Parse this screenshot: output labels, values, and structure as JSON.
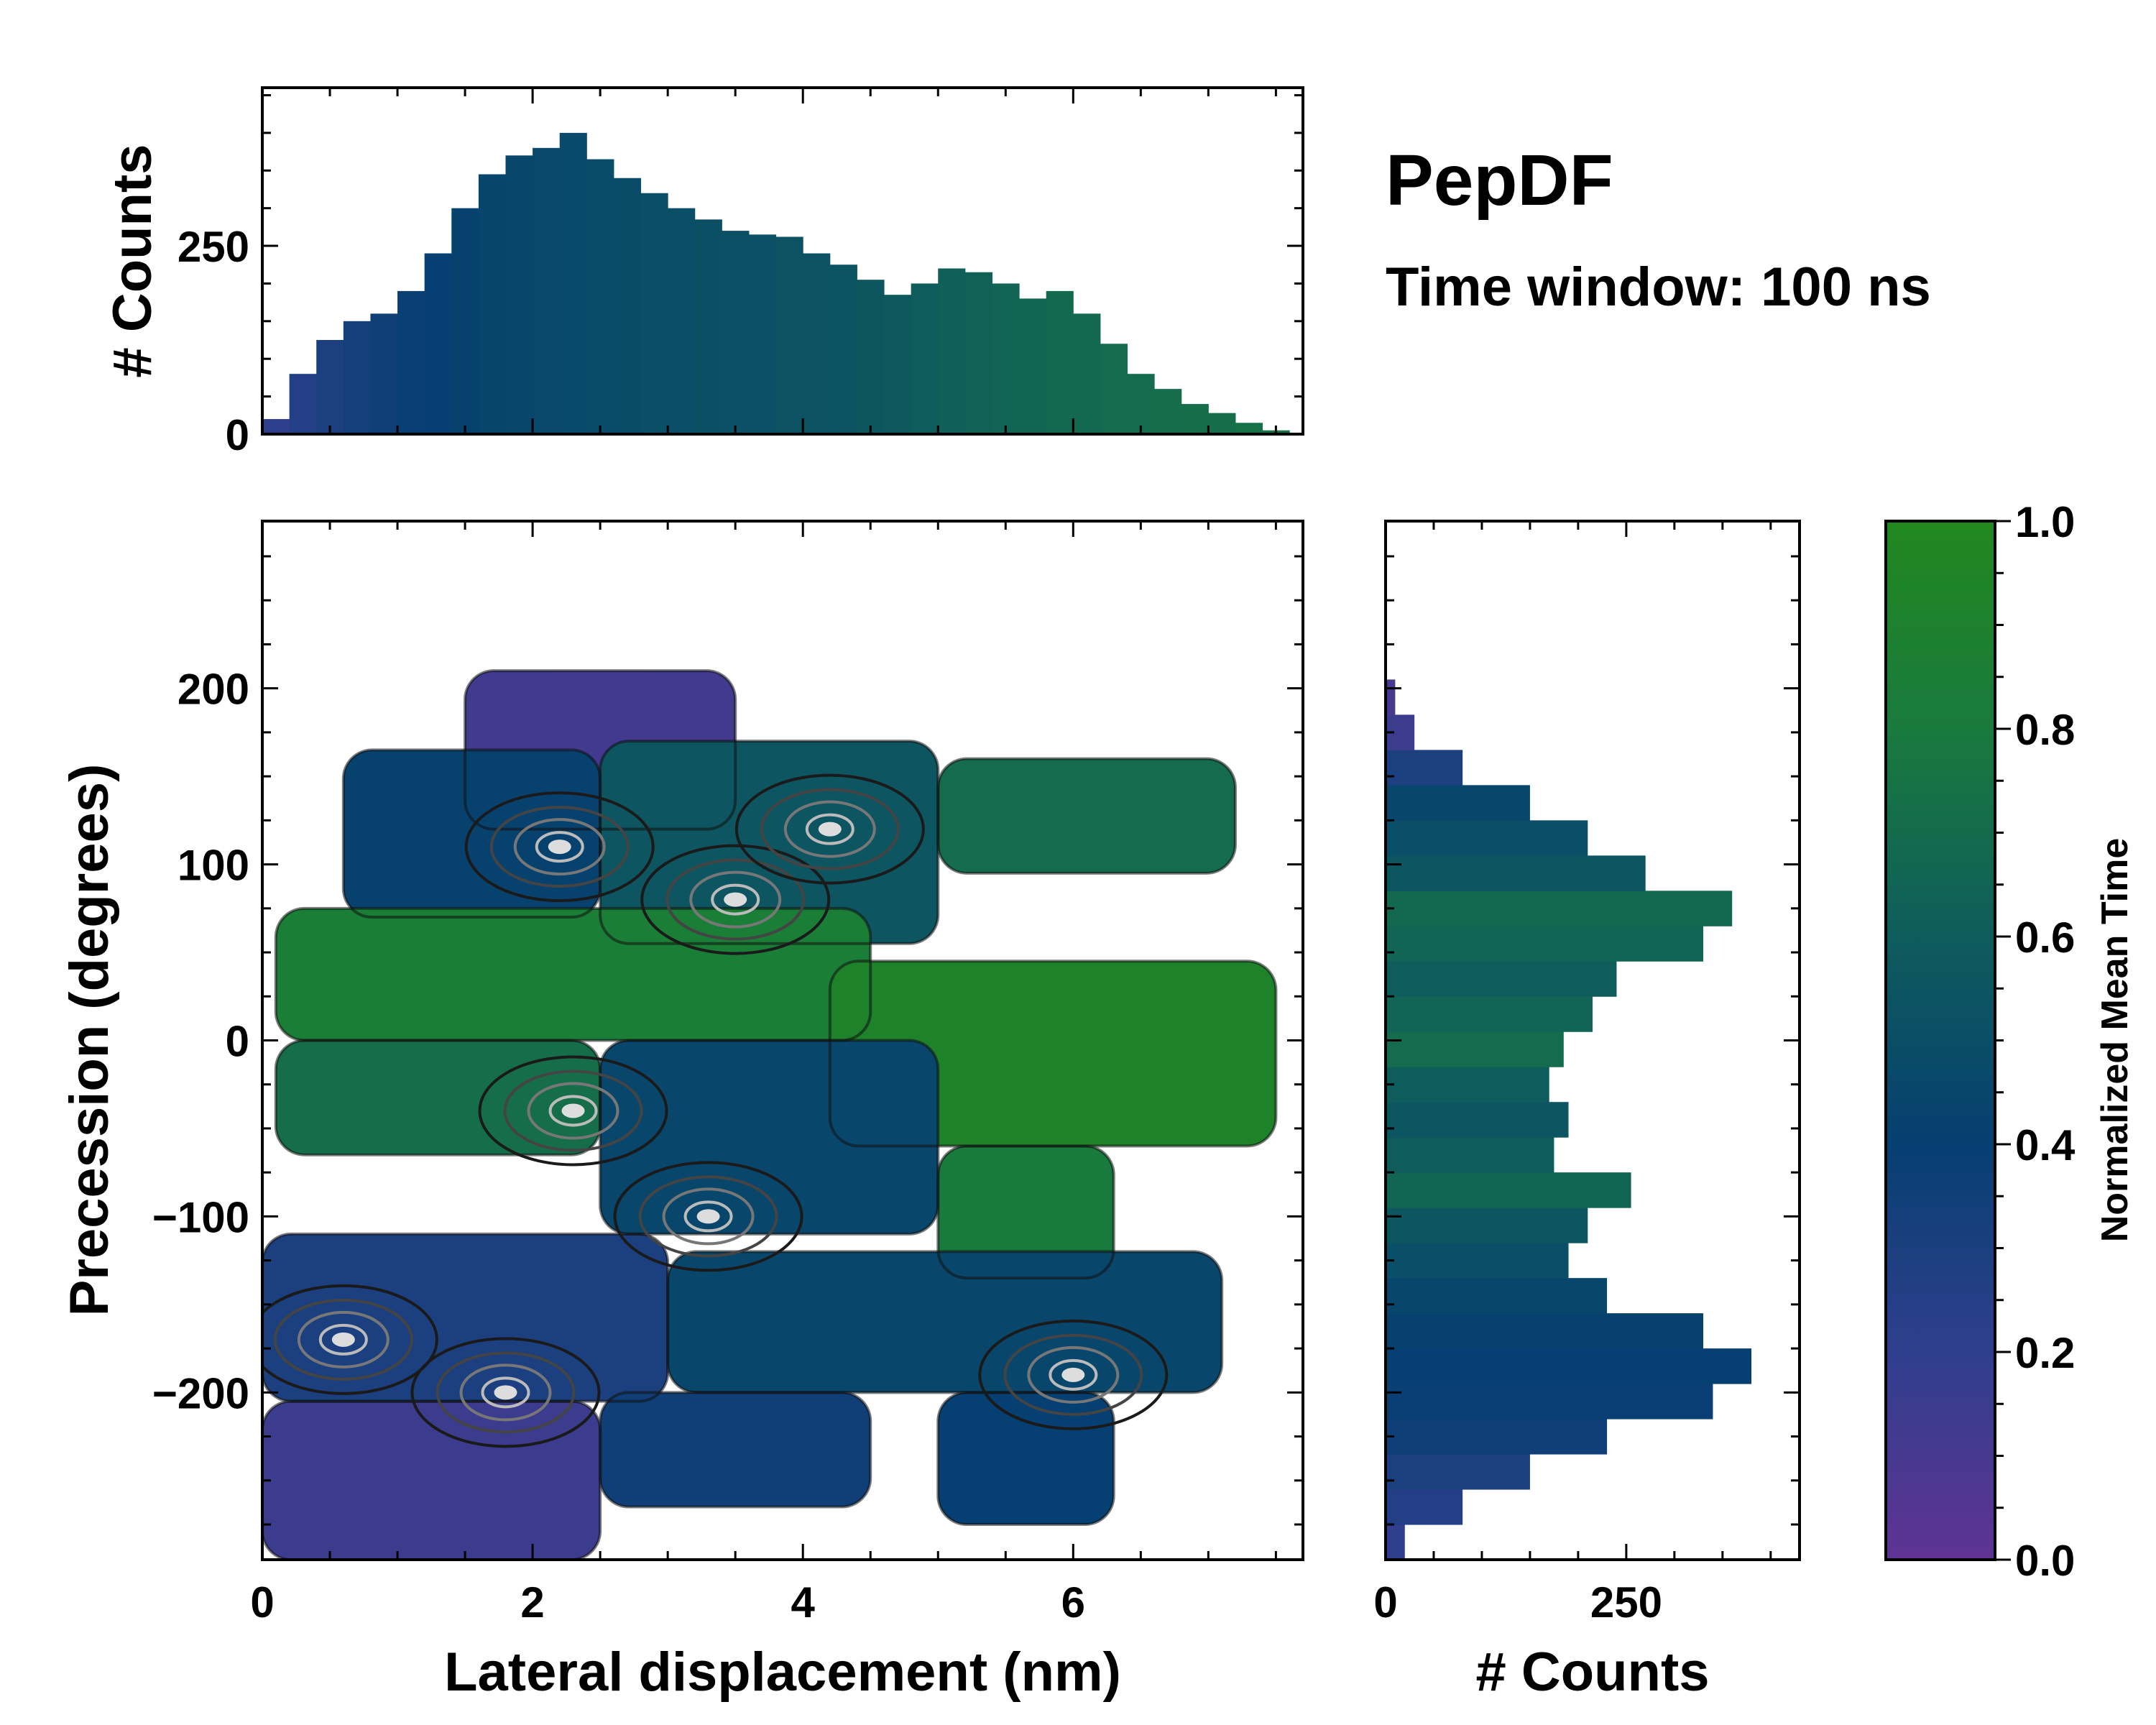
{
  "chart_data": [
    {
      "panel": "marginal-x",
      "type": "bar",
      "xlabel": "",
      "ylabel": "# Counts",
      "xlim": [
        0,
        7.7
      ],
      "ylim": [
        0,
        460
      ],
      "yticks": [
        0,
        250
      ],
      "x_centers": [
        0.1,
        0.3,
        0.5,
        0.7,
        0.9,
        1.1,
        1.3,
        1.5,
        1.7,
        1.9,
        2.1,
        2.3,
        2.5,
        2.7,
        2.9,
        3.1,
        3.3,
        3.5,
        3.7,
        3.9,
        4.1,
        4.3,
        4.5,
        4.7,
        4.9,
        5.1,
        5.3,
        5.5,
        5.7,
        5.9,
        6.1,
        6.3,
        6.5,
        6.7,
        6.9,
        7.1,
        7.3,
        7.5
      ],
      "values": [
        20,
        80,
        125,
        150,
        160,
        190,
        240,
        300,
        345,
        370,
        380,
        400,
        365,
        340,
        320,
        300,
        285,
        270,
        265,
        262,
        240,
        225,
        205,
        185,
        200,
        220,
        215,
        200,
        180,
        190,
        160,
        120,
        80,
        60,
        40,
        28,
        15,
        5
      ],
      "normalized_time": [
        0.2,
        0.26,
        0.3,
        0.33,
        0.35,
        0.38,
        0.4,
        0.42,
        0.44,
        0.45,
        0.46,
        0.47,
        0.48,
        0.49,
        0.5,
        0.5,
        0.51,
        0.52,
        0.52,
        0.53,
        0.53,
        0.54,
        0.56,
        0.58,
        0.6,
        0.62,
        0.63,
        0.65,
        0.66,
        0.68,
        0.68,
        0.7,
        0.7,
        0.71,
        0.72,
        0.72,
        0.73,
        0.74
      ]
    },
    {
      "panel": "main",
      "type": "heatmap",
      "xlabel": "Lateral displacement (nm)",
      "ylabel": "Precession (degrees)",
      "xlim": [
        0,
        7.7
      ],
      "ylim": [
        -295,
        295
      ],
      "xticks": [
        0,
        2,
        4,
        6
      ],
      "yticks": [
        -200,
        -100,
        0,
        100,
        200
      ],
      "color_value": "Normalized Mean Time",
      "overlay": "density contours",
      "regions": [
        {
          "x": [
            1.5,
            3.5
          ],
          "y": [
            120,
            210
          ],
          "normalized_time": 0.12
        },
        {
          "x": [
            0.6,
            2.5
          ],
          "y": [
            70,
            165
          ],
          "normalized_time": 0.42
        },
        {
          "x": [
            2.5,
            5.0
          ],
          "y": [
            55,
            170
          ],
          "normalized_time": 0.55
        },
        {
          "x": [
            5.0,
            7.2
          ],
          "y": [
            95,
            160
          ],
          "normalized_time": 0.7
        },
        {
          "x": [
            0.1,
            4.5
          ],
          "y": [
            0,
            75
          ],
          "normalized_time": 0.85
        },
        {
          "x": [
            4.2,
            7.5
          ],
          "y": [
            -60,
            45
          ],
          "normalized_time": 0.92
        },
        {
          "x": [
            0.1,
            2.5
          ],
          "y": [
            -65,
            0
          ],
          "normalized_time": 0.72
        },
        {
          "x": [
            2.5,
            5.0
          ],
          "y": [
            -110,
            0
          ],
          "normalized_time": 0.45
        },
        {
          "x": [
            5.0,
            6.3
          ],
          "y": [
            -135,
            -60
          ],
          "normalized_time": 0.8
        },
        {
          "x": [
            0.0,
            3.0
          ],
          "y": [
            -205,
            -110
          ],
          "normalized_time": 0.3
        },
        {
          "x": [
            3.0,
            7.1
          ],
          "y": [
            -200,
            -120
          ],
          "normalized_time": 0.45
        },
        {
          "x": [
            0.0,
            2.5
          ],
          "y": [
            -295,
            -205
          ],
          "normalized_time": 0.15
        },
        {
          "x": [
            2.5,
            4.5
          ],
          "y": [
            -265,
            -200
          ],
          "normalized_time": 0.35
        },
        {
          "x": [
            5.0,
            6.3
          ],
          "y": [
            -275,
            -200
          ],
          "normalized_time": 0.4
        }
      ],
      "density_peaks": [
        {
          "x": 2.2,
          "y": 110
        },
        {
          "x": 3.5,
          "y": 80
        },
        {
          "x": 4.2,
          "y": 120
        },
        {
          "x": 2.3,
          "y": -40
        },
        {
          "x": 0.6,
          "y": -170
        },
        {
          "x": 1.8,
          "y": -200
        },
        {
          "x": 3.3,
          "y": -100
        },
        {
          "x": 6.0,
          "y": -190
        }
      ]
    },
    {
      "panel": "marginal-y",
      "type": "bar",
      "orientation": "horizontal",
      "xlabel": "# Counts",
      "ylabel": "",
      "xlim": [
        0,
        430
      ],
      "xticks": [
        0,
        250
      ],
      "ylim": [
        -295,
        295
      ],
      "y_centers": [
        -285,
        -265,
        -245,
        -225,
        -205,
        -185,
        -165,
        -145,
        -125,
        -105,
        -85,
        -65,
        -45,
        -25,
        -5,
        15,
        35,
        55,
        75,
        95,
        115,
        135,
        155,
        175,
        195,
        215
      ],
      "values": [
        20,
        80,
        150,
        230,
        340,
        380,
        330,
        230,
        190,
        210,
        255,
        175,
        190,
        170,
        185,
        215,
        240,
        330,
        360,
        270,
        210,
        150,
        80,
        30,
        10,
        0
      ],
      "normalized_time": [
        0.2,
        0.26,
        0.3,
        0.35,
        0.38,
        0.4,
        0.42,
        0.45,
        0.5,
        0.55,
        0.66,
        0.6,
        0.55,
        0.6,
        0.7,
        0.65,
        0.6,
        0.65,
        0.68,
        0.55,
        0.5,
        0.45,
        0.3,
        0.15,
        0.1,
        0.08
      ]
    }
  ],
  "figure": {
    "title": "PepDF",
    "subtitle": "Time window: 100 ns"
  },
  "colorbar": {
    "label": "Normalized Mean Time",
    "range": [
      0,
      1
    ],
    "tick_labels": [
      "0.0",
      "0.2",
      "0.4",
      "0.6",
      "0.8",
      "1.0"
    ],
    "colors": [
      "#5f3392",
      "#2f3f8d",
      "#063f71",
      "#0f5c5c",
      "#197a3d",
      "#21881f"
    ]
  }
}
